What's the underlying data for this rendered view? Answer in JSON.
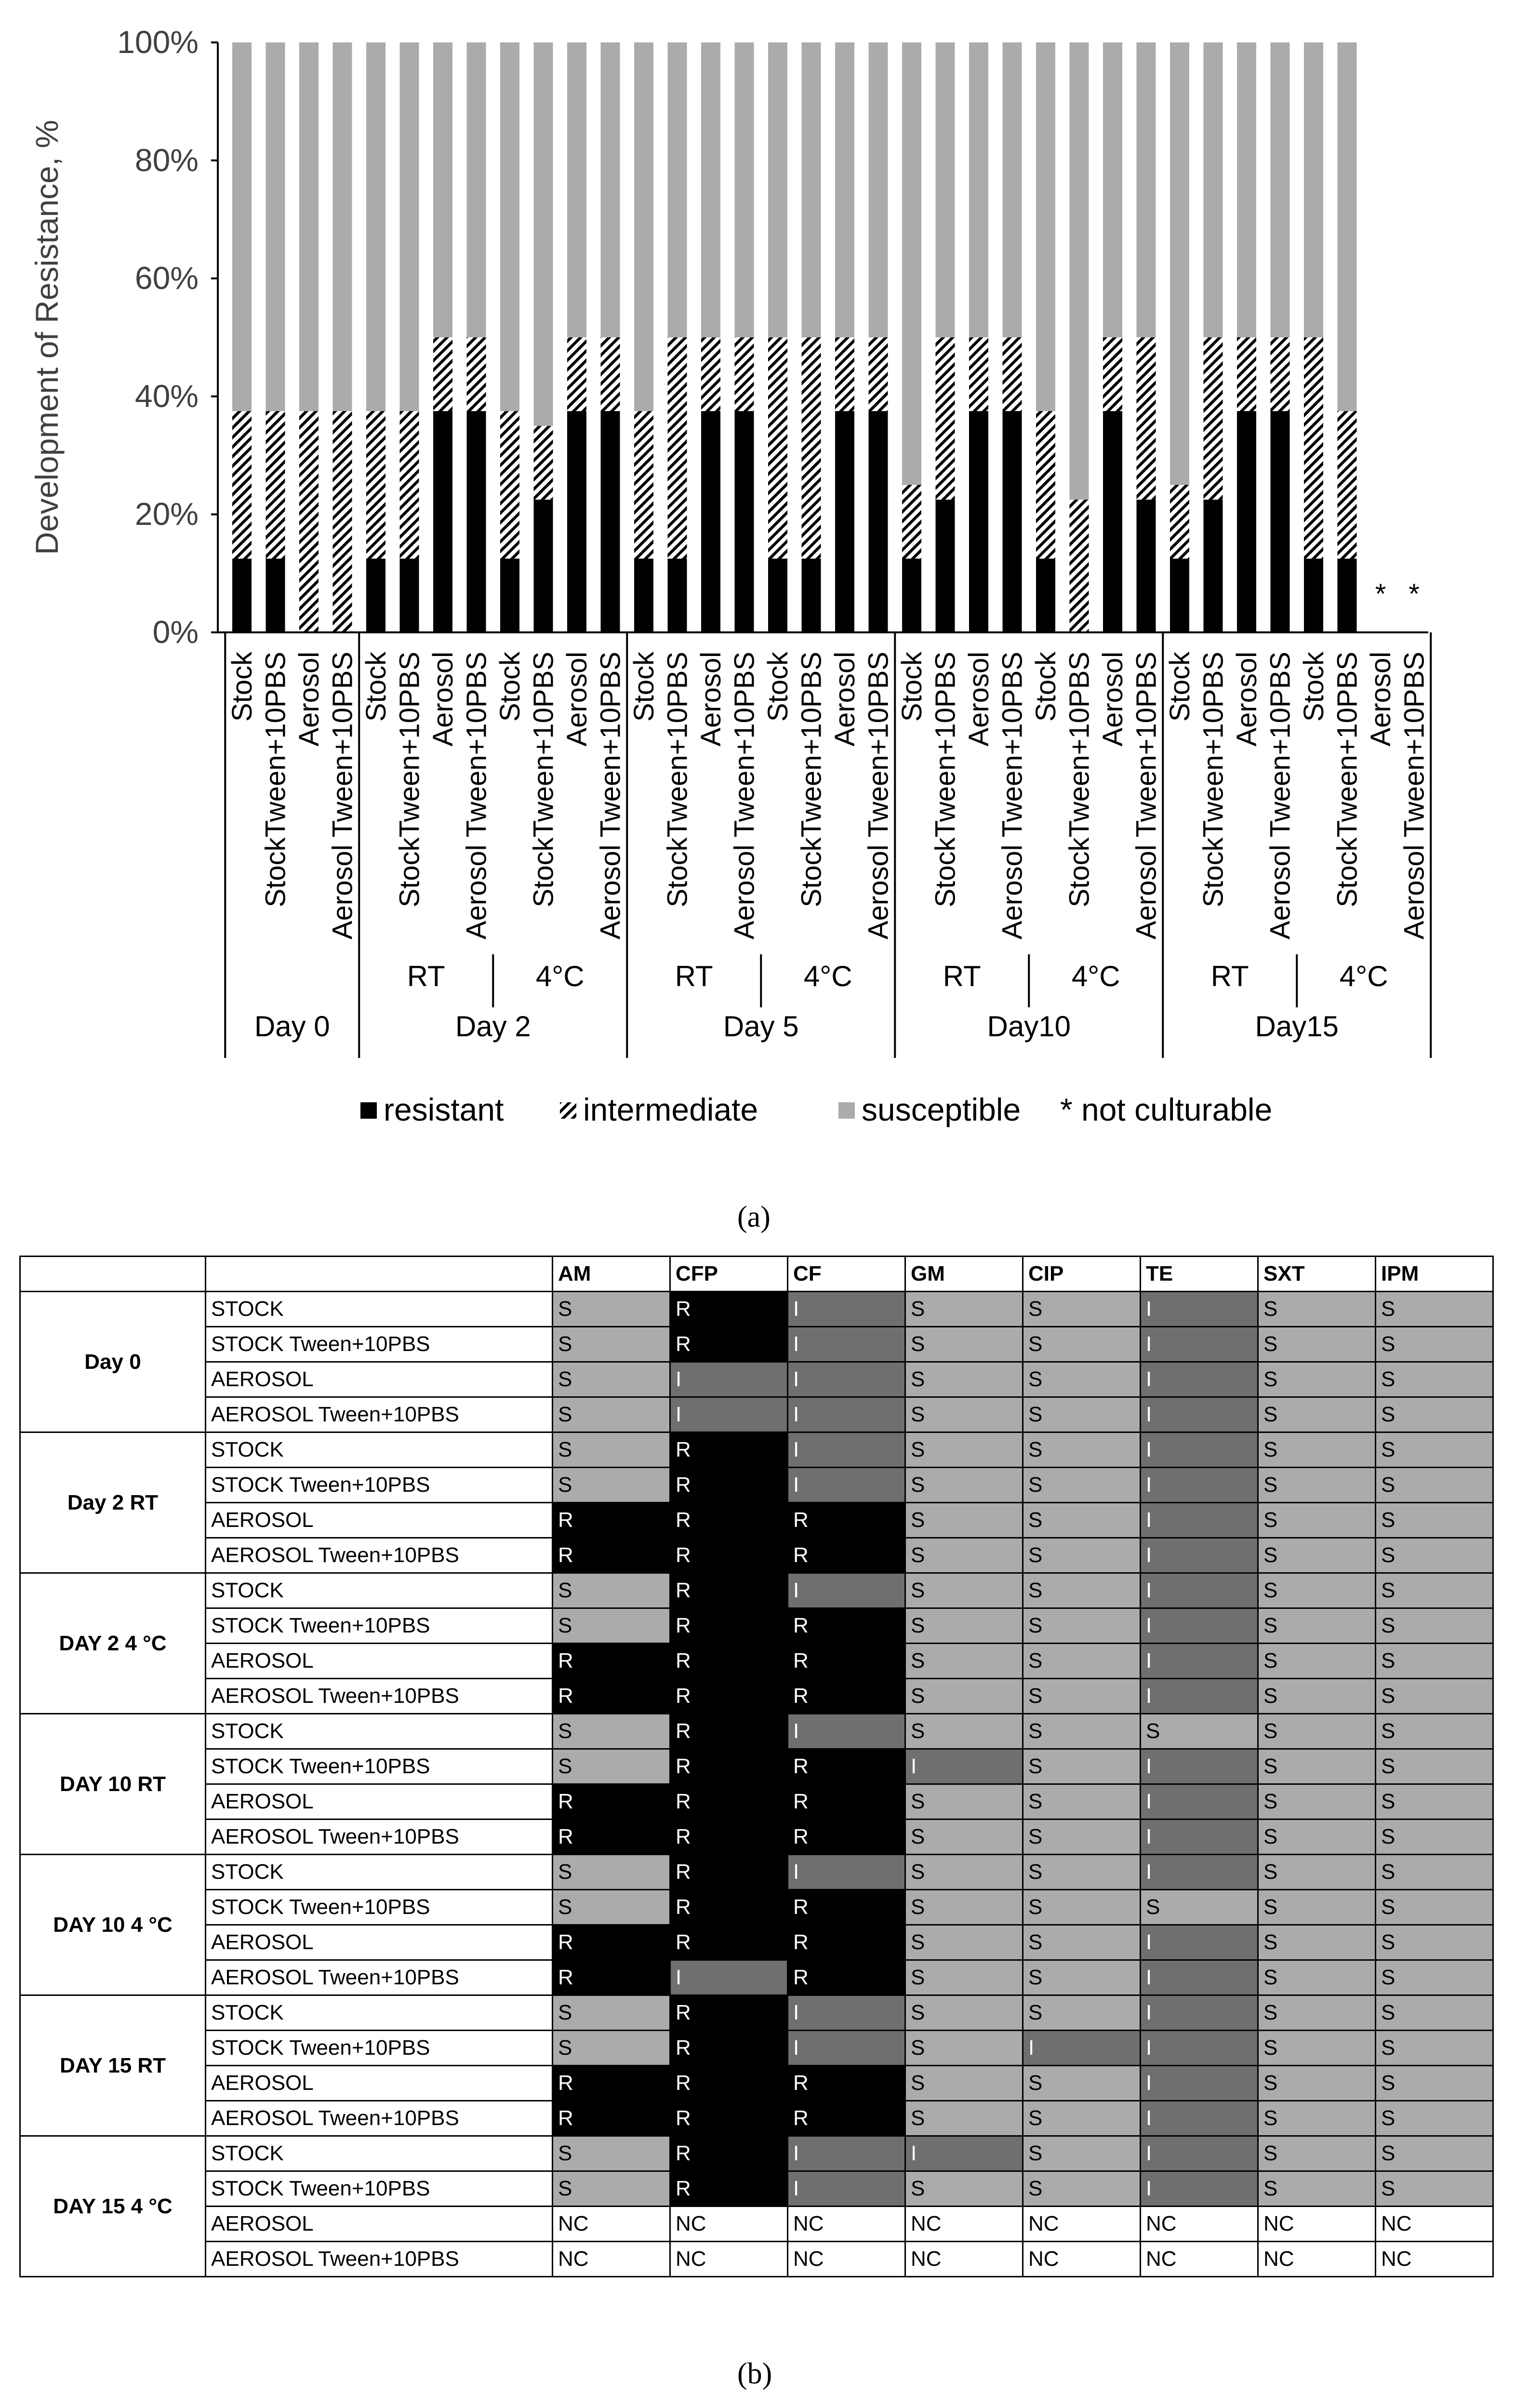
{
  "chart_data": {
    "type": "bar",
    "stacked": true,
    "ylabel": "Development of Resistance, %",
    "ylim": [
      0,
      100
    ],
    "yticks": [
      "0%",
      "20%",
      "40%",
      "60%",
      "80%",
      "100%"
    ],
    "categories": [
      "Stock",
      "StockTween+10PBS",
      "Aerosol",
      "Aerosol Tween+10PBS",
      "Stock",
      "StockTween+10PBS",
      "Aerosol",
      "Aerosol Tween+10PBS",
      "Stock",
      "StockTween+10PBS",
      "Aerosol",
      "Aerosol Tween+10PBS",
      "Stock",
      "StockTween+10PBS",
      "Aerosol",
      "Aerosol Tween+10PBS",
      "Stock",
      "StockTween+10PBS",
      "Aerosol",
      "Aerosol Tween+10PBS",
      "Stock",
      "StockTween+10PBS",
      "Aerosol",
      "Aerosol Tween+10PBS",
      "Stock",
      "StockTween+10PBS",
      "Aerosol",
      "Aerosol Tween+10PBS",
      "Stock",
      "StockTween+10PBS",
      "Aerosol",
      "Aerosol Tween+10PBS",
      "Stock",
      "StockTween+10PBS",
      "Aerosol",
      "Aerosol Tween+10PBS"
    ],
    "series": [
      {
        "name": "resistant",
        "color": "#000000",
        "values": [
          12.5,
          12.5,
          0,
          0,
          12.5,
          12.5,
          37.5,
          37.5,
          12.5,
          22.5,
          37.5,
          37.5,
          12.5,
          12.5,
          37.5,
          37.5,
          12.5,
          12.5,
          37.5,
          37.5,
          12.5,
          22.5,
          37.5,
          37.5,
          12.5,
          0,
          37.5,
          22.5,
          12.5,
          22.5,
          37.5,
          37.5,
          12.5,
          12.5,
          0,
          0
        ]
      },
      {
        "name": "intermediate",
        "color": "#000000",
        "values": [
          25,
          25,
          37.5,
          37.5,
          25,
          25,
          12.5,
          12.5,
          25,
          12.5,
          12.5,
          12.5,
          25,
          37.5,
          12.5,
          12.5,
          37.5,
          37.5,
          12.5,
          12.5,
          12.5,
          27.5,
          12.5,
          12.5,
          25,
          22.5,
          12.5,
          27.5,
          12.5,
          27.5,
          12.5,
          12.5,
          37.5,
          25,
          0,
          0
        ]
      },
      {
        "name": "susceptible",
        "color": "#ababab",
        "values": [
          62.5,
          62.5,
          62.5,
          62.5,
          62.5,
          62.5,
          50,
          50,
          62.5,
          65,
          50,
          50,
          62.5,
          50,
          50,
          50,
          50,
          50,
          50,
          50,
          75,
          50,
          50,
          50,
          62.5,
          77.5,
          50,
          50,
          75,
          50,
          50,
          50,
          50,
          62.5,
          0,
          0
        ]
      }
    ],
    "not_culturable": [
      false,
      false,
      false,
      false,
      false,
      false,
      false,
      false,
      false,
      false,
      false,
      false,
      false,
      false,
      false,
      false,
      false,
      false,
      false,
      false,
      false,
      false,
      false,
      false,
      false,
      false,
      false,
      false,
      false,
      false,
      false,
      false,
      false,
      false,
      true,
      true
    ],
    "not_culturable_mark": "*",
    "condition_groups": [
      {
        "label": "RT",
        "bars": [
          4,
          7
        ]
      },
      {
        "label": "4°C",
        "bars": [
          8,
          11
        ]
      },
      {
        "label": "RT",
        "bars": [
          12,
          15
        ]
      },
      {
        "label": "4°C",
        "bars": [
          16,
          19
        ]
      },
      {
        "label": "RT",
        "bars": [
          20,
          23
        ]
      },
      {
        "label": "4°C",
        "bars": [
          24,
          27
        ]
      },
      {
        "label": "RT",
        "bars": [
          28,
          31
        ]
      },
      {
        "label": "4°C",
        "bars": [
          32,
          35
        ]
      }
    ],
    "day_groups": [
      {
        "label": "Day 0",
        "bars": [
          0,
          3
        ]
      },
      {
        "label": "Day 2",
        "bars": [
          4,
          11
        ]
      },
      {
        "label": "Day 5",
        "bars": [
          12,
          19
        ]
      },
      {
        "label": "Day10",
        "bars": [
          20,
          27
        ]
      },
      {
        "label": "Day15",
        "bars": [
          28,
          35
        ]
      }
    ],
    "legend": {
      "placement": "bottom",
      "items": [
        {
          "name": "resistant",
          "style": "solid-black"
        },
        {
          "name": "intermediate",
          "style": "hatch"
        },
        {
          "name": "susceptible",
          "style": "solid-gray"
        }
      ],
      "note": "* not culturable"
    }
  },
  "panel_labels": {
    "a": "(a)",
    "b": "(b)"
  },
  "table": {
    "headers": [
      "",
      "",
      "AM",
      "CFP",
      "CF",
      "GM",
      "CIP",
      "TE",
      "SXT",
      "IPM"
    ],
    "groups": [
      {
        "label": "Day 0",
        "rows": [
          {
            "sample": "STOCK",
            "values": [
              "S",
              "R",
              "I",
              "S",
              "S",
              "I",
              "S",
              "S"
            ]
          },
          {
            "sample": "STOCK Tween+10PBS",
            "values": [
              "S",
              "R",
              "I",
              "S",
              "S",
              "I",
              "S",
              "S"
            ]
          },
          {
            "sample": "AEROSOL",
            "values": [
              "S",
              "I",
              "I",
              "S",
              "S",
              "I",
              "S",
              "S"
            ]
          },
          {
            "sample": "AEROSOL Tween+10PBS",
            "values": [
              "S",
              "I",
              "I",
              "S",
              "S",
              "I",
              "S",
              "S"
            ]
          }
        ]
      },
      {
        "label": "Day 2 RT",
        "rows": [
          {
            "sample": "STOCK",
            "values": [
              "S",
              "R",
              "I",
              "S",
              "S",
              "I",
              "S",
              "S"
            ]
          },
          {
            "sample": "STOCK Tween+10PBS",
            "values": [
              "S",
              "R",
              "I",
              "S",
              "S",
              "I",
              "S",
              "S"
            ]
          },
          {
            "sample": "AEROSOL",
            "values": [
              "R",
              "R",
              "R",
              "S",
              "S",
              "I",
              "S",
              "S"
            ]
          },
          {
            "sample": "AEROSOL Tween+10PBS",
            "values": [
              "R",
              "R",
              "R",
              "S",
              "S",
              "I",
              "S",
              "S"
            ]
          }
        ]
      },
      {
        "label": "DAY 2 4 °C",
        "rows": [
          {
            "sample": "STOCK",
            "values": [
              "S",
              "R",
              "I",
              "S",
              "S",
              "I",
              "S",
              "S"
            ]
          },
          {
            "sample": "STOCK Tween+10PBS",
            "values": [
              "S",
              "R",
              "R",
              "S",
              "S",
              "I",
              "S",
              "S"
            ]
          },
          {
            "sample": "AEROSOL",
            "values": [
              "R",
              "R",
              "R",
              "S",
              "S",
              "I",
              "S",
              "S"
            ]
          },
          {
            "sample": "AEROSOL Tween+10PBS",
            "values": [
              "R",
              "R",
              "R",
              "S",
              "S",
              "I",
              "S",
              "S"
            ]
          }
        ]
      },
      {
        "label": "DAY 10 RT",
        "rows": [
          {
            "sample": "STOCK",
            "values": [
              "S",
              "R",
              "I",
              "S",
              "S",
              "S",
              "S",
              "S"
            ]
          },
          {
            "sample": "STOCK Tween+10PBS",
            "values": [
              "S",
              "R",
              "R",
              "I",
              "S",
              "I",
              "S",
              "S"
            ]
          },
          {
            "sample": "AEROSOL",
            "values": [
              "R",
              "R",
              "R",
              "S",
              "S",
              "I",
              "S",
              "S"
            ]
          },
          {
            "sample": "AEROSOL Tween+10PBS",
            "values": [
              "R",
              "R",
              "R",
              "S",
              "S",
              "I",
              "S",
              "S"
            ]
          }
        ]
      },
      {
        "label": "DAY 10 4 °C",
        "rows": [
          {
            "sample": "STOCK",
            "values": [
              "S",
              "R",
              "I",
              "S",
              "S",
              "I",
              "S",
              "S"
            ]
          },
          {
            "sample": "STOCK Tween+10PBS",
            "values": [
              "S",
              "R",
              "R",
              "S",
              "S",
              "S",
              "S",
              "S"
            ]
          },
          {
            "sample": "AEROSOL",
            "values": [
              "R",
              "R",
              "R",
              "S",
              "S",
              "I",
              "S",
              "S"
            ]
          },
          {
            "sample": "AEROSOL Tween+10PBS",
            "values": [
              "R",
              "I",
              "R",
              "S",
              "S",
              "I",
              "S",
              "S"
            ]
          }
        ]
      },
      {
        "label": "DAY 15 RT",
        "rows": [
          {
            "sample": "STOCK",
            "values": [
              "S",
              "R",
              "I",
              "S",
              "S",
              "I",
              "S",
              "S"
            ]
          },
          {
            "sample": "STOCK Tween+10PBS",
            "values": [
              "S",
              "R",
              "I",
              "S",
              "I",
              "I",
              "S",
              "S"
            ]
          },
          {
            "sample": "AEROSOL",
            "values": [
              "R",
              "R",
              "R",
              "S",
              "S",
              "I",
              "S",
              "S"
            ]
          },
          {
            "sample": "AEROSOL Tween+10PBS",
            "values": [
              "R",
              "R",
              "R",
              "S",
              "S",
              "I",
              "S",
              "S"
            ]
          }
        ]
      },
      {
        "label": "DAY 15 4 °C",
        "rows": [
          {
            "sample": "STOCK",
            "values": [
              "S",
              "R",
              "I",
              "I",
              "S",
              "I",
              "S",
              "S"
            ]
          },
          {
            "sample": "STOCK Tween+10PBS",
            "values": [
              "S",
              "R",
              "I",
              "S",
              "S",
              "I",
              "S",
              "S"
            ]
          },
          {
            "sample": "AEROSOL",
            "values": [
              "NC",
              "NC",
              "NC",
              "NC",
              "NC",
              "NC",
              "NC",
              "NC"
            ]
          },
          {
            "sample": "AEROSOL Tween+10PBS",
            "values": [
              "NC",
              "NC",
              "NC",
              "NC",
              "NC",
              "NC",
              "NC",
              "NC"
            ]
          }
        ]
      }
    ]
  }
}
